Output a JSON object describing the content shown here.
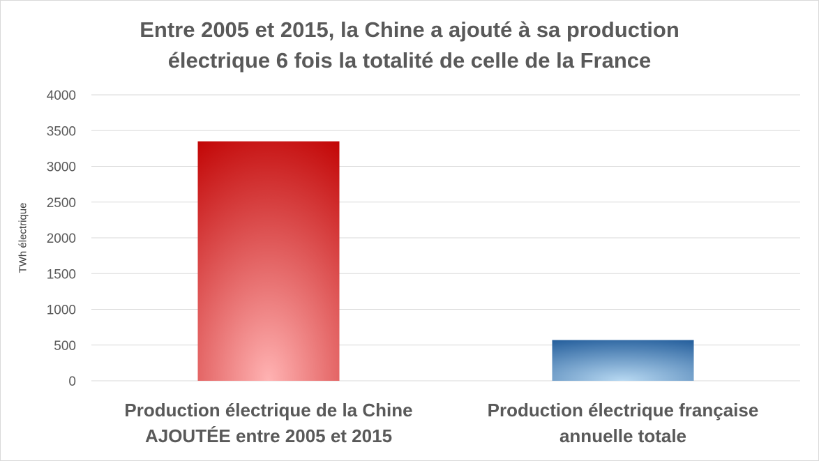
{
  "chart_data": {
    "type": "bar",
    "title": [
      "Entre 2005 et 2015, la Chine a ajouté à sa production",
      "électrique 6 fois la totalité de celle de la France"
    ],
    "xlabel": "",
    "ylabel": "TWh électrique",
    "ylim": [
      0,
      4000
    ],
    "yticks": [
      0,
      500,
      1000,
      1500,
      2000,
      2500,
      3000,
      3500,
      4000
    ],
    "grid": true,
    "legend": "none",
    "categories": [
      [
        "Production électrique de la Chine",
        "AJOUTÉE entre 2005 et 2015"
      ],
      [
        "Production électrique française",
        "annuelle totale"
      ]
    ],
    "values": [
      3350,
      570
    ],
    "colors": {
      "bar_1_edge": "#c00000",
      "bar_1_light": "#ffb3b3",
      "bar_2_edge": "#1f5a99",
      "bar_2_light": "#b8d9f2",
      "gridline": "#d9d9d9",
      "text": "#595959"
    }
  }
}
